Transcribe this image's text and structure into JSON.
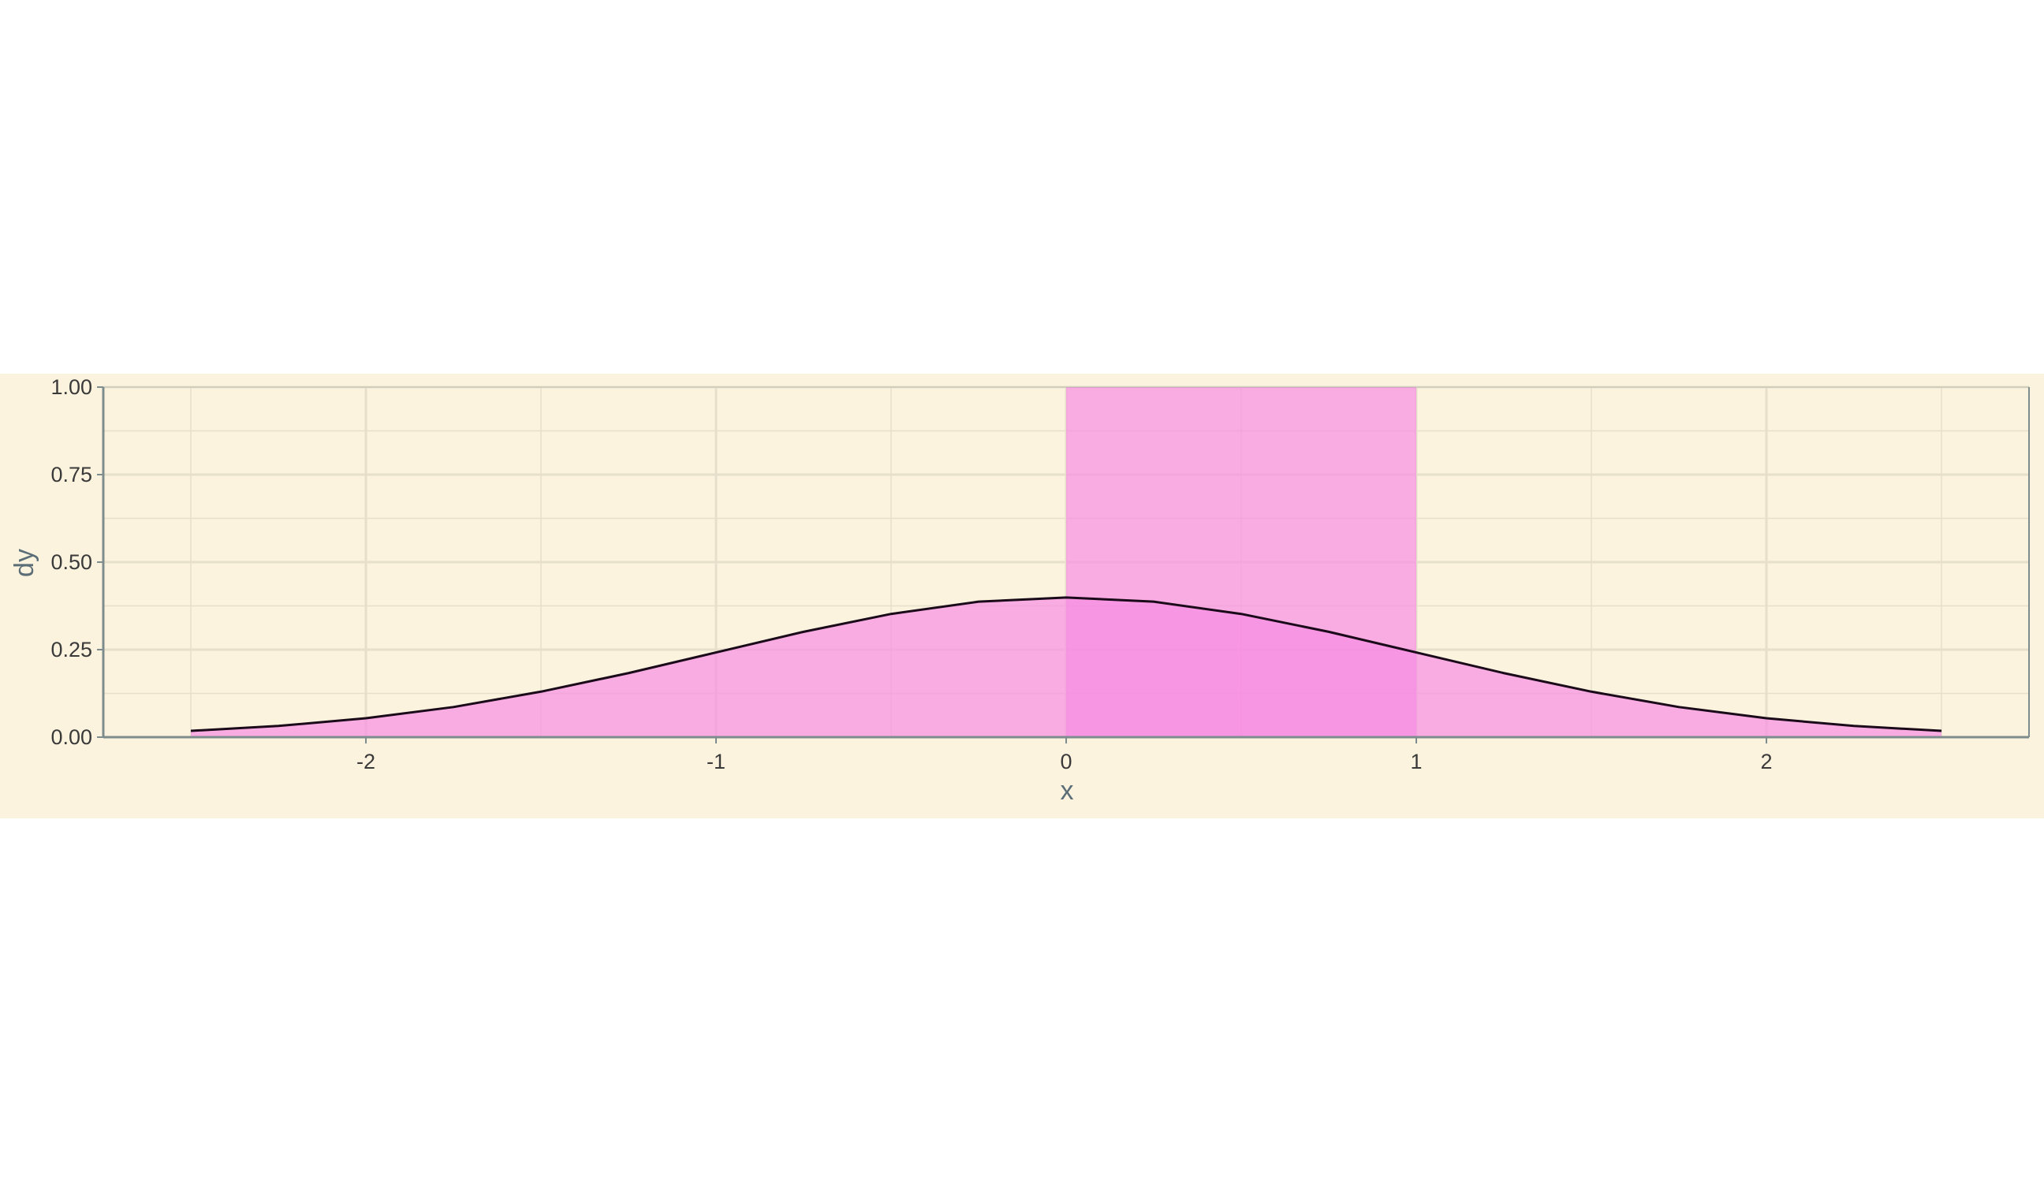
{
  "chart_data": {
    "type": "area",
    "title": "",
    "xlabel": "x",
    "ylabel": "dy",
    "xlim": [
      -2.75,
      2.75
    ],
    "ylim": [
      0,
      1
    ],
    "x_ticks": [
      -2,
      -1,
      0,
      1,
      2
    ],
    "x_tick_labels": [
      "-2",
      "-1",
      "0",
      "1",
      "2"
    ],
    "y_ticks": [
      0,
      0.25,
      0.5,
      0.75,
      1
    ],
    "y_tick_labels": [
      "0.00",
      "0.25",
      "0.50",
      "0.75",
      "1.00"
    ],
    "x_minor_ticks": [
      -2.5,
      -1.5,
      -0.5,
      0.5,
      1.5,
      2.5
    ],
    "y_minor_ticks": [
      0.125,
      0.375,
      0.625,
      0.875
    ],
    "grid": true,
    "legend": "none",
    "series": [
      {
        "type": "area",
        "x": [
          -2.5,
          -2.25,
          -2.0,
          -1.75,
          -1.5,
          -1.25,
          -1.0,
          -0.75,
          -0.5,
          -0.25,
          0.0,
          0.25,
          0.5,
          0.75,
          1.0,
          1.25,
          1.5,
          1.75,
          2.0,
          2.25,
          2.5
        ],
        "y": [
          0.018,
          0.032,
          0.054,
          0.086,
          0.13,
          0.183,
          0.242,
          0.301,
          0.352,
          0.387,
          0.399,
          0.387,
          0.352,
          0.301,
          0.242,
          0.183,
          0.13,
          0.086,
          0.054,
          0.032,
          0.018
        ],
        "fill": "#f78de3",
        "line_color": "#1a0a1a"
      },
      {
        "type": "rect",
        "x_range": [
          0,
          1
        ],
        "y_range": [
          0,
          1
        ],
        "fill": "#f78de3"
      }
    ],
    "colors": {
      "panel_background": "#fbf3dd",
      "grid": "#e6dfcb",
      "axis": "#7f8c8d",
      "fill": "#f78de3",
      "curve": "#1a0a1a"
    }
  }
}
